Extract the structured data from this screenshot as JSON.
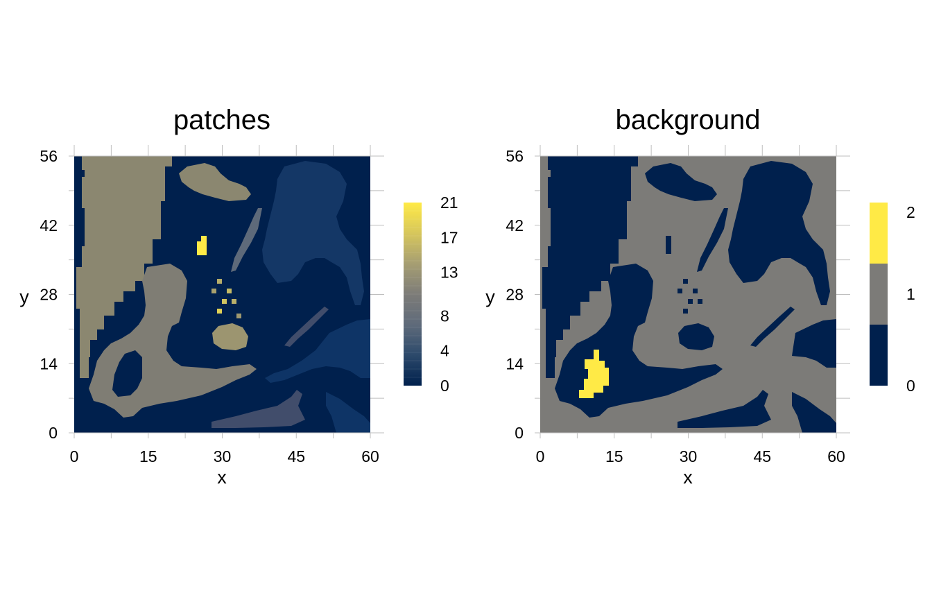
{
  "chart_data": [
    {
      "type": "heatmap",
      "title": "patches",
      "xlabel": "x",
      "ylabel": "y",
      "xlim": [
        0,
        60
      ],
      "ylim": [
        0,
        56
      ],
      "x_ticks": [
        "0",
        "15",
        "30",
        "45",
        "60"
      ],
      "y_ticks": [
        "0",
        "14",
        "28",
        "42",
        "56"
      ],
      "legend": {
        "type": "continuous",
        "placement": "right",
        "min": 0,
        "max": 21,
        "labels": [
          "0",
          "4",
          "8",
          "13",
          "17",
          "21"
        ],
        "label_values": [
          0,
          4,
          8,
          13,
          17,
          21
        ],
        "colors": [
          "#00204D",
          "#2D4A6B",
          "#5E6A7A",
          "#7D7C78",
          "#A79F72",
          "#D6C65C",
          "#FFEA46"
        ]
      },
      "regions": [
        {
          "value": 0,
          "color": "#00204D",
          "description": "background"
        },
        {
          "value": 13,
          "color": "#8B8770",
          "description": "left large patch"
        },
        {
          "value": 12,
          "color": "#7F7D74",
          "description": "lower left patch"
        },
        {
          "value": 3,
          "color": "#143766",
          "description": "upper right patch"
        },
        {
          "value": 21,
          "color": "#FFEA46",
          "description": "small patch"
        },
        {
          "value": 14,
          "color": "#9C9570",
          "description": "center patch"
        },
        {
          "value": 2,
          "color": "#0E3466",
          "description": "right patch"
        },
        {
          "value": 6,
          "color": "#414D6B",
          "description": "bottom strip"
        }
      ]
    },
    {
      "type": "heatmap",
      "title": "background",
      "xlabel": "x",
      "ylabel": "y",
      "xlim": [
        0,
        60
      ],
      "ylim": [
        0,
        56
      ],
      "x_ticks": [
        "0",
        "15",
        "30",
        "45",
        "60"
      ],
      "y_ticks": [
        "0",
        "14",
        "28",
        "42",
        "56"
      ],
      "legend": {
        "type": "discrete",
        "placement": "right",
        "categories": [
          "0",
          "1",
          "2"
        ],
        "colors": [
          "#00204D",
          "#7C7B78",
          "#FFEA46"
        ]
      }
    }
  ],
  "colors": {
    "navy": "#00204D",
    "gray": "#7C7B78",
    "yellow": "#FFEA46",
    "axis": "#BEBEBE"
  }
}
